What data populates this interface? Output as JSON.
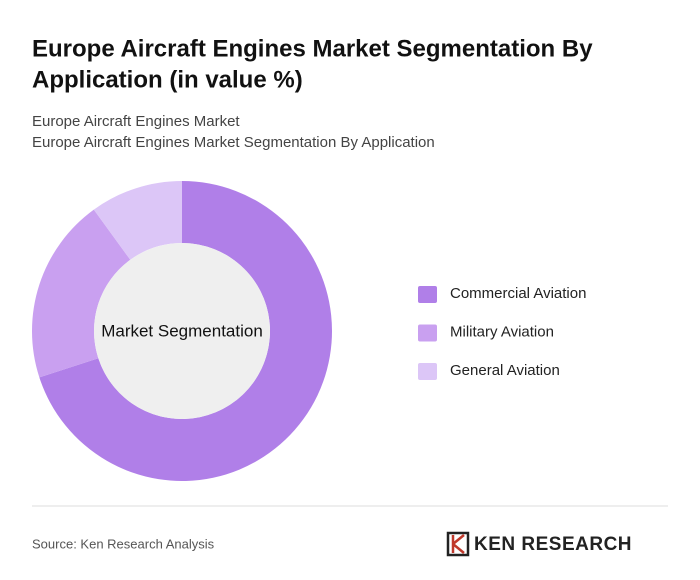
{
  "chart_data": {
    "type": "pie",
    "title": [
      "Europe Aircraft Engines Market Segmentation By",
      "Application (in value %)"
    ],
    "subtitle": [
      "Europe Aircraft Engines Market",
      "Europe Aircraft Engines Market Segmentation By Application"
    ],
    "center_label": "Market Segmentation",
    "categories": [
      "Commercial Aviation",
      "Military Aviation",
      "General Aviation"
    ],
    "values": [
      70,
      20,
      10
    ],
    "colors": [
      "#b07fe8",
      "#c9a0f0",
      "#dcc6f7"
    ],
    "legend": "right"
  },
  "footer": {
    "source": "Source: Ken Research Analysis",
    "logo": "KEN RESEARCH"
  }
}
